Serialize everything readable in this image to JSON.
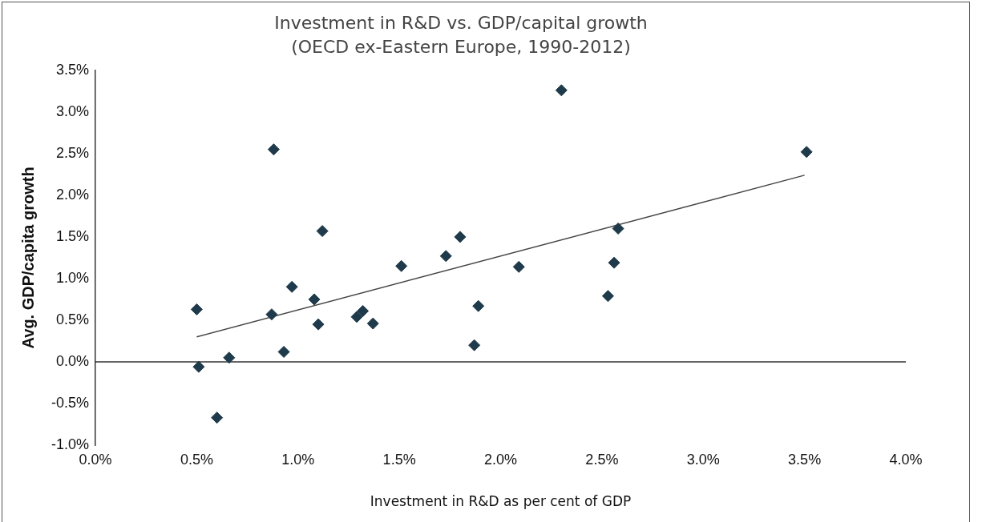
{
  "chart_data": {
    "type": "scatter",
    "title": "Investment in R&D vs. GDP/capital growth",
    "subtitle": "(OECD ex-Eastern Europe, 1990-2012)",
    "xlabel": "Investment in R&D as per cent of GDP",
    "ylabel": "Avg. GDP/capita growth",
    "xlim": [
      0,
      4
    ],
    "xticks": [
      {
        "value": 0,
        "label": "0.0%"
      },
      {
        "value": 0.5,
        "label": "0.5%"
      },
      {
        "value": 1,
        "label": "1.0%"
      },
      {
        "value": 1.5,
        "label": "1.5%"
      },
      {
        "value": 2,
        "label": "2.0%"
      },
      {
        "value": 2.5,
        "label": "2.5%"
      },
      {
        "value": 3,
        "label": "3.0%"
      },
      {
        "value": 3.5,
        "label": "3.5%"
      },
      {
        "value": 4,
        "label": "4.0%"
      }
    ],
    "ylim": [
      -1,
      3.5
    ],
    "yticks": [
      {
        "value": -1,
        "label": "-1.0%"
      },
      {
        "value": -0.5,
        "label": "-0.5%"
      },
      {
        "value": 0,
        "label": "0.0%"
      },
      {
        "value": 0.5,
        "label": "0.5%"
      },
      {
        "value": 1,
        "label": "1.0%"
      },
      {
        "value": 1.5,
        "label": "1.5%"
      },
      {
        "value": 2,
        "label": "2.0%"
      },
      {
        "value": 2.5,
        "label": "2.5%"
      },
      {
        "value": 3,
        "label": "3.0%"
      },
      {
        "value": 3.5,
        "label": "3.5%"
      }
    ],
    "grid": false,
    "legend": false,
    "marker": "diamond",
    "ref_lines": [
      {
        "axis": "y",
        "value": 0,
        "color": "#333333"
      }
    ],
    "series": [
      {
        "color": "#1f3a4a",
        "x": [
          0.5,
          0.51,
          0.66,
          0.6,
          0.88,
          0.87,
          0.93,
          0.97,
          1.08,
          1.1,
          1.12,
          1.29,
          1.32,
          1.37,
          1.51,
          1.73,
          1.8,
          1.89,
          1.87,
          2.09,
          2.3,
          2.58,
          2.56,
          2.53,
          3.51
        ],
        "values": [
          0.63,
          -0.06,
          0.05,
          -0.67,
          2.55,
          0.57,
          0.12,
          0.9,
          0.75,
          0.45,
          1.57,
          0.54,
          0.61,
          0.46,
          1.15,
          1.27,
          1.5,
          0.67,
          0.2,
          1.14,
          3.26,
          1.6,
          1.19,
          0.79,
          2.52
        ]
      },
      {
        "type": "line",
        "color": "#444444",
        "marker": "none",
        "x": [
          0.5,
          3.5
        ],
        "values": [
          0.3,
          2.24
        ]
      }
    ]
  }
}
